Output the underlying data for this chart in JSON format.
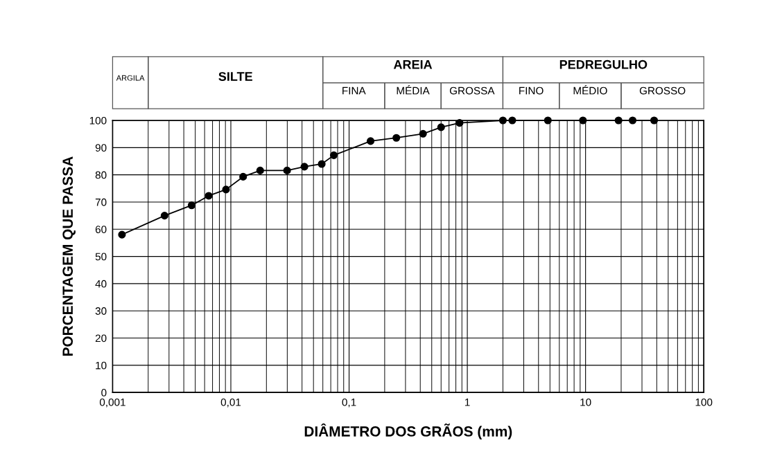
{
  "chart_data": [
    {
      "type": "line",
      "xlabel": "DIÂMETRO DOS GRÃOS (mm)",
      "ylabel": "PORCENTAGEM QUE PASSA",
      "x": [
        0.0012,
        0.00275,
        0.00466,
        0.0065,
        0.0091,
        0.0127,
        0.0177,
        0.0299,
        0.0419,
        0.0587,
        0.0743,
        0.152,
        0.251,
        0.422,
        0.6,
        0.86,
        2.0,
        2.4,
        4.8,
        9.5,
        19,
        25,
        38
      ],
      "series": [
        {
          "color": "#000000",
          "values": [
            58,
            65,
            68.8,
            72.3,
            74.6,
            79.3,
            81.6,
            81.6,
            83.0,
            84.0,
            87.2,
            92.4,
            93.6,
            95.1,
            97.5,
            99.1,
            100,
            100,
            100,
            100,
            100,
            100,
            100
          ]
        }
      ],
      "log": "x",
      "xlim": [
        0.001,
        100
      ],
      "xticks": [
        {
          "value": 0.001,
          "label": "0,001"
        },
        {
          "value": 0.01,
          "label": "0,01"
        },
        {
          "value": 0.1,
          "label": "0,1"
        },
        1,
        10,
        100
      ],
      "ylim": [
        0,
        100
      ],
      "yticks": [
        0,
        10,
        20,
        30,
        40,
        50,
        60,
        70,
        80,
        90,
        100
      ],
      "grid": true,
      "marker": "circle",
      "line_style": "solid"
    },
    {
      "type": "other",
      "annotations": [
        "ARGILA",
        "SILTE",
        "AREIA",
        "FINA",
        "MÉDIA",
        "GROSSA",
        "PEDREGULHO",
        "FINO",
        "MÉDIO",
        "GROSSO"
      ]
    }
  ]
}
